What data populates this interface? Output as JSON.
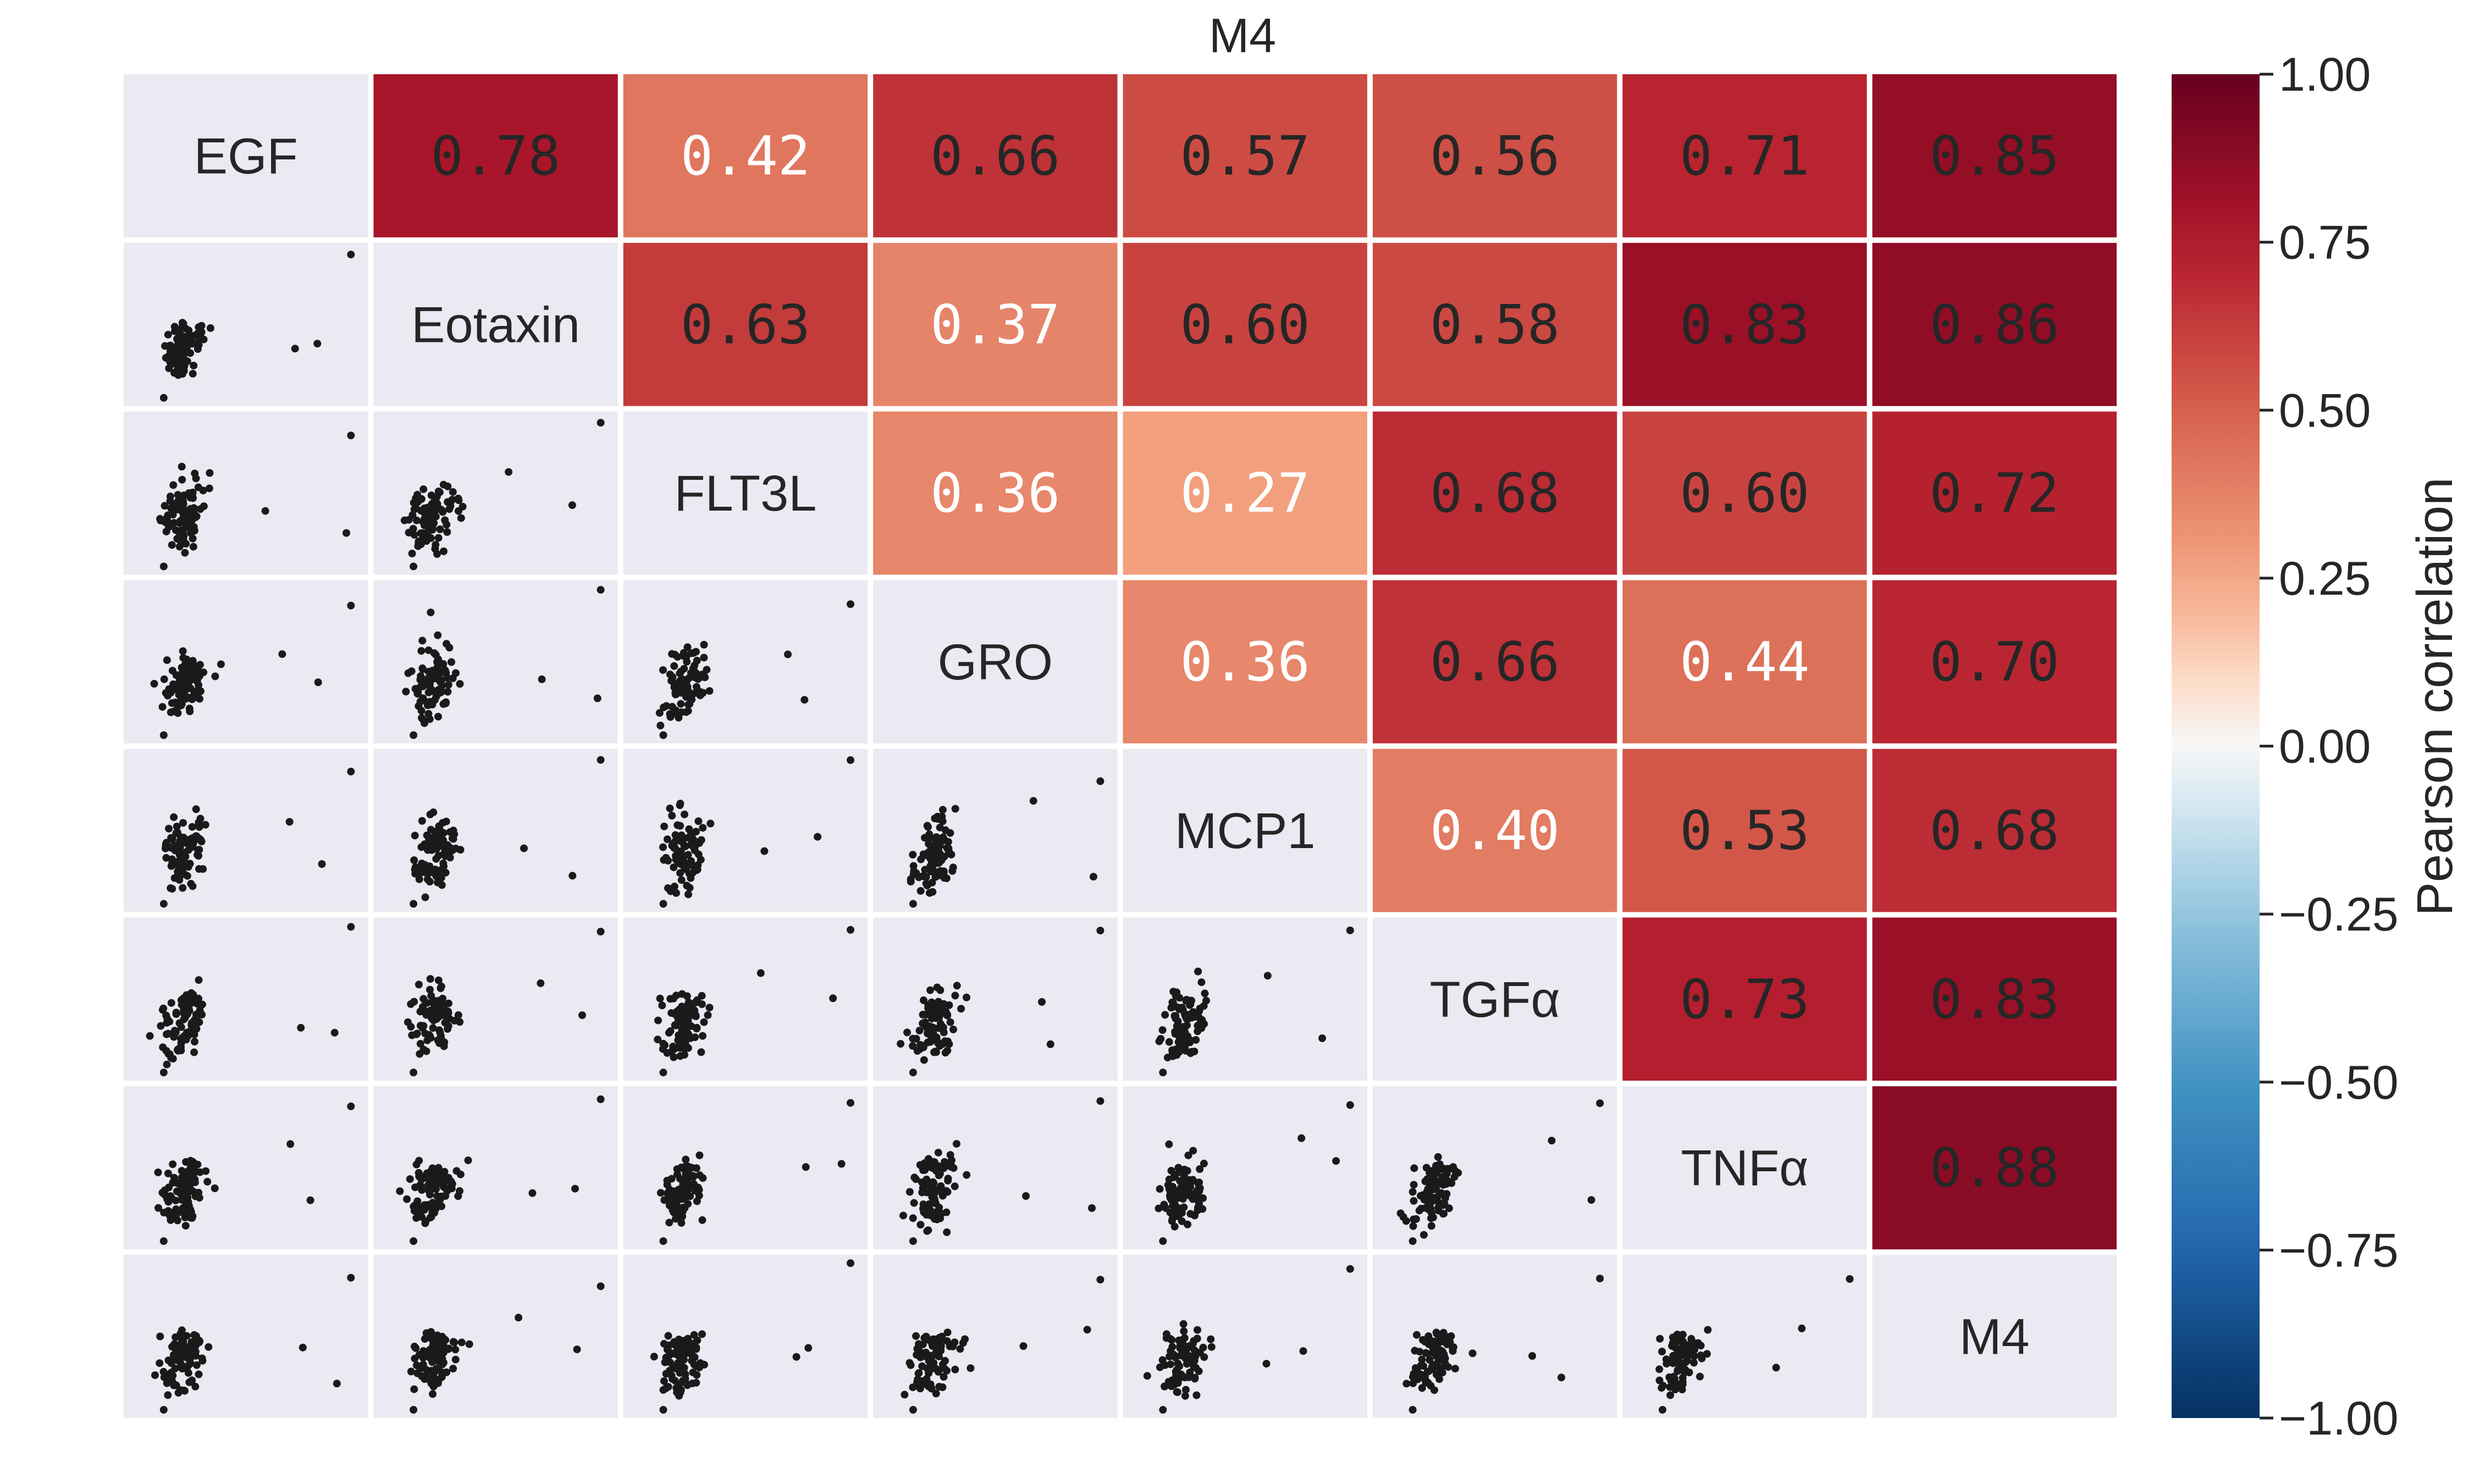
{
  "chart_data": {
    "type": "heatmap",
    "title": "M4",
    "variables": [
      "EGF",
      "Eotaxin",
      "FLT3L",
      "GRO",
      "MCP1",
      "TGFα",
      "TNFα",
      "M4"
    ],
    "correlation_display": [
      [
        "",
        "0.78",
        "0.42",
        "0.66",
        "0.57",
        "0.56",
        "0.71",
        "0.85"
      ],
      [
        "",
        "",
        "0.63",
        "0.37",
        "0.60",
        "0.58",
        "0.83",
        "0.86"
      ],
      [
        "",
        "",
        "",
        "0.36",
        "0.27",
        "0.68",
        "0.60",
        "0.72"
      ],
      [
        "",
        "",
        "",
        "",
        "0.36",
        "0.66",
        "0.44",
        "0.70"
      ],
      [
        "",
        "",
        "",
        "",
        "",
        "0.40",
        "0.53",
        "0.68"
      ],
      [
        "",
        "",
        "",
        "",
        "",
        "",
        "0.73",
        "0.83"
      ],
      [
        "",
        "",
        "",
        "",
        "",
        "",
        "",
        "0.88"
      ],
      [
        "",
        "",
        "",
        "",
        "",
        "",
        "",
        ""
      ]
    ],
    "colorbar": {
      "label": "Pearson correlation",
      "range": [
        -1.0,
        1.0
      ],
      "tick_labels": [
        "1.00",
        "0.75",
        "0.50",
        "0.25",
        "0.00",
        "−0.25",
        "−0.50",
        "−0.75",
        "−1.00"
      ],
      "tick_values": [
        1.0,
        0.75,
        0.5,
        0.25,
        0.0,
        -0.25,
        -0.5,
        -0.75,
        -1.0
      ],
      "colormap": "RdBu_r"
    },
    "lower_triangle": "scatter",
    "diagonal": "variable name",
    "grid": false
  },
  "colors": {
    "panel_bg": "#eaeaf2",
    "point": "#1a1a1a",
    "text_dark": "#262626",
    "text_light": "#ffffff"
  }
}
